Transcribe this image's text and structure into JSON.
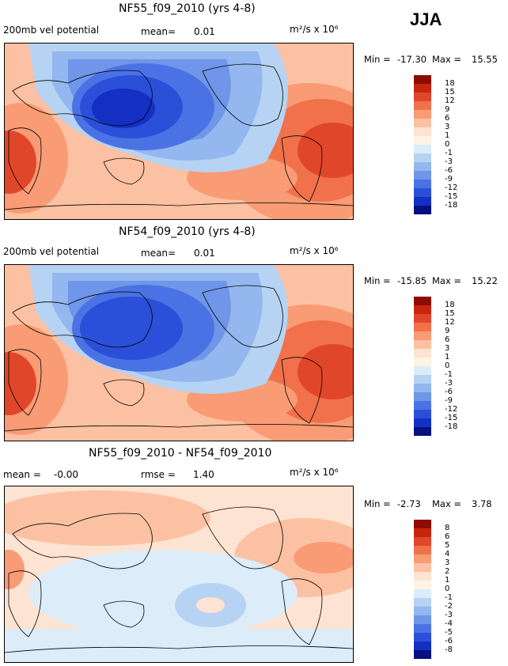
{
  "season": "JJA",
  "colors": {
    "positive": [
      "#fde3d2",
      "#fcc1a2",
      "#f99b74",
      "#f1714b",
      "#e0472a",
      "#c8250f",
      "#8f0b05"
    ],
    "neutral_pos": "#fff3e6",
    "neutral_neg": "#dcecf8",
    "negative": [
      "#b7d3f3",
      "#93b7ee",
      "#6f96e8",
      "#4a72e4",
      "#2b4fd8",
      "#1330c3",
      "#06107f"
    ],
    "coastline": "#000000"
  },
  "chart_data": [
    {
      "type": "heatmap",
      "title": "NF55_f09_2010 (yrs 4-8)",
      "variable_label": "200mb vel potential",
      "mean_label": "mean=",
      "mean_value": "0.01",
      "units": "m²/s x 10⁶",
      "min_label": "Min =",
      "min": "-17.30",
      "max_label": "Max =",
      "max": "15.55",
      "levels": [
        "18",
        "15",
        "12",
        "9",
        "6",
        "3",
        "1",
        "0",
        "-1",
        "-3",
        "-6",
        "-9",
        "-12",
        "-15",
        "-18"
      ]
    },
    {
      "type": "heatmap",
      "title": "NF54_f09_2010 (yrs 4-8)",
      "variable_label": "200mb vel potential",
      "mean_label": "mean=",
      "mean_value": "0.01",
      "units": "m²/s x 10⁶",
      "min_label": "Min =",
      "min": "-15.85",
      "max_label": "Max =",
      "max": "15.22",
      "levels": [
        "18",
        "15",
        "12",
        "9",
        "6",
        "3",
        "1",
        "0",
        "-1",
        "-3",
        "-6",
        "-9",
        "-12",
        "-15",
        "-18"
      ]
    },
    {
      "type": "heatmap",
      "title": "NF55_f09_2010 - NF54_f09_2010",
      "mean_label": "mean =",
      "mean_value": "-0.00",
      "rmse_label": "rmse =",
      "rmse_value": "1.40",
      "units": "m²/s x 10⁶",
      "min_label": "Min =",
      "min": "-2.73",
      "max_label": "Max =",
      "max": "3.78",
      "levels": [
        "8",
        "6",
        "5",
        "4",
        "3",
        "2",
        "1",
        "0",
        "-1",
        "-2",
        "-3",
        "-4",
        "-5",
        "-6",
        "-8"
      ]
    }
  ]
}
